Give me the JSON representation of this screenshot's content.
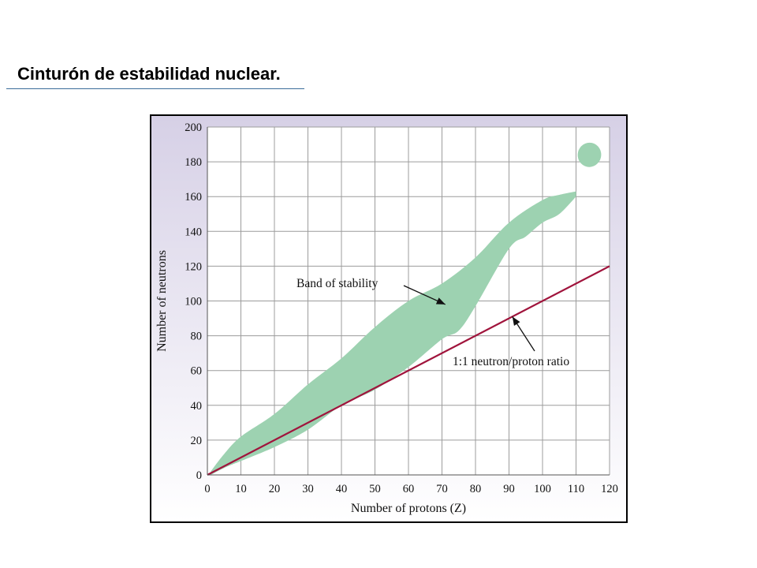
{
  "slide": {
    "title": "Cinturón de estabilidad nuclear."
  },
  "chart_data": {
    "type": "line",
    "title": "",
    "xlabel": "Number of protons (Z)",
    "ylabel": "Number of neutrons",
    "xlim": [
      0,
      120
    ],
    "ylim": [
      0,
      200
    ],
    "xticks": [
      0,
      10,
      20,
      30,
      40,
      50,
      60,
      70,
      80,
      90,
      100,
      110,
      120
    ],
    "yticks": [
      0,
      20,
      40,
      60,
      80,
      100,
      120,
      140,
      160,
      180,
      200
    ],
    "grid": true,
    "series": [
      {
        "name": "1:1 neutron/proton ratio",
        "color": "#a0143c",
        "x": [
          0,
          120
        ],
        "y": [
          0,
          120
        ]
      }
    ],
    "regions": [
      {
        "name": "Band of stability",
        "color": "#9dd2b1",
        "upper": {
          "x": [
            1,
            5,
            10,
            20,
            30,
            40,
            50,
            60,
            70,
            80,
            90,
            100,
            105,
            110
          ],
          "y": [
            2,
            12,
            22,
            35,
            52,
            67,
            85,
            100,
            110,
            125,
            145,
            158,
            161,
            163
          ]
        },
        "lower": {
          "x": [
            1,
            5,
            10,
            20,
            30,
            40,
            50,
            60,
            70,
            75,
            80,
            90,
            95,
            100,
            105,
            110
          ],
          "y": [
            0,
            4,
            8,
            16,
            26,
            40,
            49,
            62,
            78,
            83,
            97,
            130,
            137,
            145,
            150,
            160
          ]
        }
      },
      {
        "name": "island",
        "color": "#9dd2b1",
        "center": [
          114,
          184
        ],
        "rx": 3.5,
        "ry": 7
      }
    ],
    "annotations": [
      {
        "text": "Band of stability",
        "target": [
          71,
          98
        ]
      },
      {
        "text": "1:1 neutron/proton ratio",
        "target": [
          91,
          91
        ]
      }
    ],
    "colors": {
      "background_top": "#d6d0e6",
      "background_bottom": "#ffffff",
      "plot_area": "#ffffff",
      "grid": "#9c9c9c"
    }
  }
}
